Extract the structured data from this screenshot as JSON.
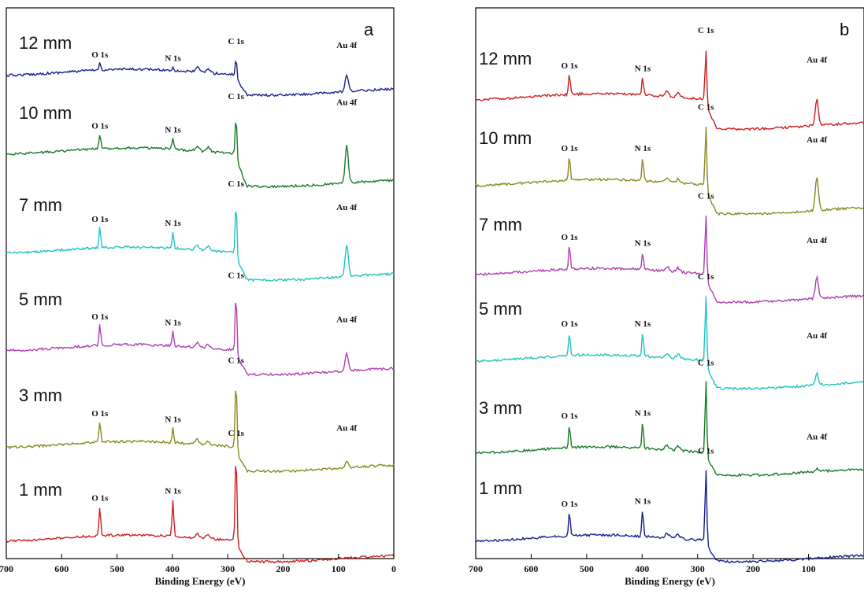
{
  "chart_data": [
    {
      "type": "line",
      "panel_label": "a",
      "xlabel": "Binding Energy (eV)",
      "ylabel": "",
      "xlim": [
        700,
        0
      ],
      "x_reversed": true,
      "x_ticks": [
        "700",
        "600",
        "500",
        "400",
        "300",
        "200",
        "100",
        "0"
      ],
      "grid": false,
      "series": [
        {
          "name": "12 mm",
          "color": "#1a1f8c",
          "peaks": [
            {
              "label": "O 1s",
              "x": 531,
              "intensity": 0.12
            },
            {
              "label": "N 1s",
              "x": 399,
              "intensity": 0.06
            },
            {
              "label": "C 1s",
              "x": 285,
              "intensity": 0.35
            },
            {
              "label": "Au 4f",
              "x": 85,
              "intensity": 0.28
            }
          ]
        },
        {
          "name": "10 mm",
          "color": "#1a7a2a",
          "peaks": [
            {
              "label": "O 1s",
              "x": 531,
              "intensity": 0.25
            },
            {
              "label": "N 1s",
              "x": 399,
              "intensity": 0.18
            },
            {
              "label": "C 1s",
              "x": 285,
              "intensity": 0.75
            },
            {
              "label": "Au 4f",
              "x": 85,
              "intensity": 0.65
            }
          ]
        },
        {
          "name": "7 mm",
          "color": "#22c4c4",
          "peaks": [
            {
              "label": "O 1s",
              "x": 531,
              "intensity": 0.35
            },
            {
              "label": "N 1s",
              "x": 399,
              "intensity": 0.28
            },
            {
              "label": "C 1s",
              "x": 285,
              "intensity": 0.95
            },
            {
              "label": "Au 4f",
              "x": 85,
              "intensity": 0.55
            }
          ]
        },
        {
          "name": "5 mm",
          "color": "#b040b0",
          "peaks": [
            {
              "label": "O 1s",
              "x": 531,
              "intensity": 0.35
            },
            {
              "label": "N 1s",
              "x": 399,
              "intensity": 0.25
            },
            {
              "label": "C 1s",
              "x": 285,
              "intensity": 1.05
            },
            {
              "label": "Au 4f",
              "x": 85,
              "intensity": 0.3
            }
          ]
        },
        {
          "name": "3 mm",
          "color": "#8a8a20",
          "peaks": [
            {
              "label": "O 1s",
              "x": 531,
              "intensity": 0.35
            },
            {
              "label": "N 1s",
              "x": 399,
              "intensity": 0.25
            },
            {
              "label": "C 1s",
              "x": 285,
              "intensity": 1.25
            },
            {
              "label": "Au 4f",
              "x": 85,
              "intensity": 0.1
            }
          ]
        },
        {
          "name": "1 mm",
          "color": "#cc2020",
          "peaks": [
            {
              "label": "O 1s",
              "x": 531,
              "intensity": 0.5
            },
            {
              "label": "N 1s",
              "x": 399,
              "intensity": 0.62
            },
            {
              "label": "C 1s",
              "x": 285,
              "intensity": 1.6
            }
          ]
        }
      ]
    },
    {
      "type": "line",
      "panel_label": "b",
      "xlabel": "Binding Energy (eV)",
      "ylabel": "",
      "xlim": [
        700,
        0
      ],
      "x_reversed": true,
      "x_ticks": [
        "700",
        "600",
        "500",
        "400",
        "300",
        "200",
        "100"
      ],
      "grid": false,
      "series": [
        {
          "name": "12 mm",
          "color": "#cc2020",
          "peaks": [
            {
              "label": "O 1s",
              "x": 531,
              "intensity": 0.35
            },
            {
              "label": "N 1s",
              "x": 399,
              "intensity": 0.3
            },
            {
              "label": "C 1s",
              "x": 285,
              "intensity": 0.95
            },
            {
              "label": "Au 4f",
              "x": 85,
              "intensity": 0.45
            }
          ]
        },
        {
          "name": "10 mm",
          "color": "#8a8a20",
          "peaks": [
            {
              "label": "O 1s",
              "x": 531,
              "intensity": 0.4
            },
            {
              "label": "N 1s",
              "x": 399,
              "intensity": 0.4
            },
            {
              "label": "C 1s",
              "x": 285,
              "intensity": 1.1
            },
            {
              "label": "Au 4f",
              "x": 85,
              "intensity": 0.55
            }
          ]
        },
        {
          "name": "7 mm",
          "color": "#b040b0",
          "peaks": [
            {
              "label": "O 1s",
              "x": 531,
              "intensity": 0.4
            },
            {
              "label": "N 1s",
              "x": 399,
              "intensity": 0.3
            },
            {
              "label": "C 1s",
              "x": 285,
              "intensity": 1.1
            },
            {
              "label": "Au 4f",
              "x": 85,
              "intensity": 0.35
            }
          ]
        },
        {
          "name": "5 mm",
          "color": "#22c4c4",
          "peaks": [
            {
              "label": "O 1s",
              "x": 531,
              "intensity": 0.4
            },
            {
              "label": "N 1s",
              "x": 399,
              "intensity": 0.4
            },
            {
              "label": "C 1s",
              "x": 285,
              "intensity": 1.2
            },
            {
              "label": "Au 4f",
              "x": 85,
              "intensity": 0.2
            }
          ]
        },
        {
          "name": "3 mm",
          "color": "#1a7a2a",
          "peaks": [
            {
              "label": "O 1s",
              "x": 531,
              "intensity": 0.4
            },
            {
              "label": "N 1s",
              "x": 399,
              "intensity": 0.45
            },
            {
              "label": "C 1s",
              "x": 285,
              "intensity": 1.3
            },
            {
              "label": "Au 4f",
              "x": 85,
              "intensity": 0.05
            }
          ]
        },
        {
          "name": "1 mm",
          "color": "#1a1f8c",
          "peaks": [
            {
              "label": "O 1s",
              "x": 531,
              "intensity": 0.4
            },
            {
              "label": "N 1s",
              "x": 399,
              "intensity": 0.45
            },
            {
              "label": "C 1s",
              "x": 285,
              "intensity": 1.3
            }
          ]
        }
      ]
    }
  ]
}
